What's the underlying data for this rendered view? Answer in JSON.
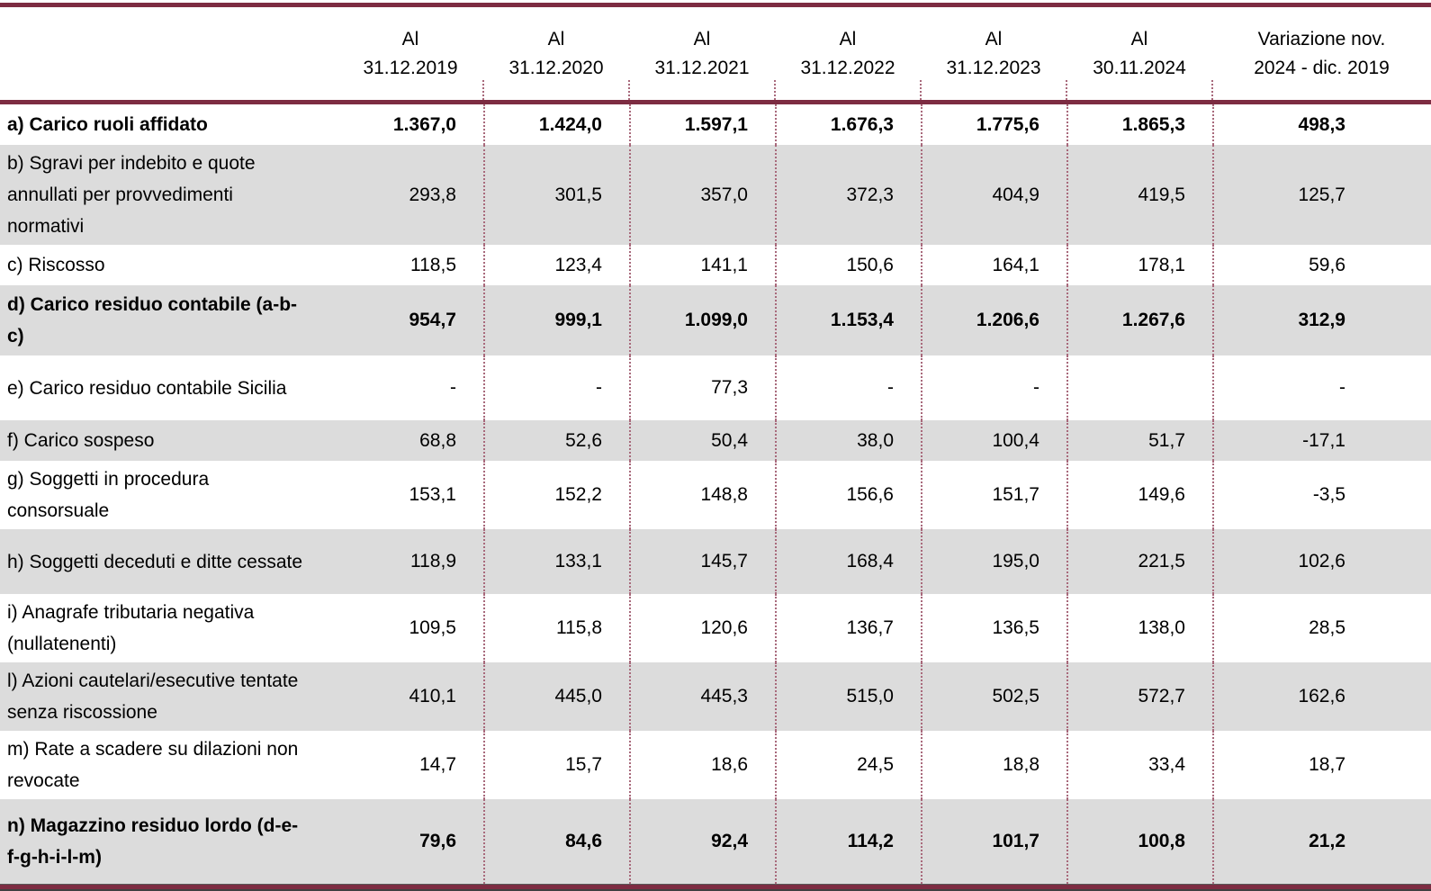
{
  "colors": {
    "rule_maroon": "#7d2c42",
    "separator_dotted": "#a8697b",
    "row_shade_gray": "#dcdcdc",
    "text": "#000000"
  },
  "table": {
    "columns": [
      {
        "line1": "Al",
        "line2": "31.12.2019"
      },
      {
        "line1": "Al",
        "line2": "31.12.2020"
      },
      {
        "line1": "Al",
        "line2": "31.12.2021"
      },
      {
        "line1": "Al",
        "line2": "31.12.2022"
      },
      {
        "line1": "Al",
        "line2": "31.12.2023"
      },
      {
        "line1": "Al",
        "line2": "30.11.2024"
      },
      {
        "line1": "Variazione nov.",
        "line2": "2024 - dic. 2019"
      }
    ],
    "rows": [
      {
        "label": "a) Carico ruoli affidato",
        "bold": true,
        "shaded": false,
        "values": [
          "1.367,0",
          "1.424,0",
          "1.597,1",
          "1.676,3",
          "1.775,6",
          "1.865,3",
          "498,3"
        ]
      },
      {
        "label": "b) Sgravi per indebito e quote annullati per provvedimenti normativi",
        "bold": false,
        "shaded": true,
        "values": [
          "293,8",
          "301,5",
          "357,0",
          "372,3",
          "404,9",
          "419,5",
          "125,7"
        ]
      },
      {
        "label": "c) Riscosso",
        "bold": false,
        "shaded": false,
        "values": [
          "118,5",
          "123,4",
          "141,1",
          "150,6",
          "164,1",
          "178,1",
          "59,6"
        ]
      },
      {
        "label": "d) Carico residuo contabile (a-b-c)",
        "bold": true,
        "shaded": true,
        "values": [
          "954,7",
          "999,1",
          "1.099,0",
          "1.153,4",
          "1.206,6",
          "1.267,6",
          "312,9"
        ]
      },
      {
        "label": "e) Carico residuo contabile Sicilia",
        "bold": false,
        "shaded": false,
        "values": [
          "-",
          "-",
          "77,3",
          "-",
          "-",
          "",
          "-"
        ]
      },
      {
        "label": "f) Carico sospeso",
        "bold": false,
        "shaded": true,
        "values": [
          "68,8",
          "52,6",
          "50,4",
          "38,0",
          "100,4",
          "51,7",
          "-17,1"
        ]
      },
      {
        "label": "g) Soggetti in procedura consorsuale",
        "bold": false,
        "shaded": false,
        "values": [
          "153,1",
          "152,2",
          "148,8",
          "156,6",
          "151,7",
          "149,6",
          "-3,5"
        ]
      },
      {
        "label": "h) Soggetti deceduti e ditte cessate",
        "bold": false,
        "shaded": true,
        "values": [
          "118,9",
          "133,1",
          "145,7",
          "168,4",
          "195,0",
          "221,5",
          "102,6"
        ]
      },
      {
        "label": "i) Anagrafe tributaria negativa (nullatenenti)",
        "bold": false,
        "shaded": false,
        "values": [
          "109,5",
          "115,8",
          "120,6",
          "136,7",
          "136,5",
          "138,0",
          "28,5"
        ]
      },
      {
        "label": "l) Azioni cautelari/esecutive tentate senza riscossione",
        "bold": false,
        "shaded": true,
        "values": [
          "410,1",
          "445,0",
          "445,3",
          "515,0",
          "502,5",
          "572,7",
          "162,6"
        ]
      },
      {
        "label": "m) Rate a scadere su dilazioni non revocate",
        "bold": false,
        "shaded": false,
        "values": [
          "14,7",
          "15,7",
          "18,6",
          "24,5",
          "18,8",
          "33,4",
          "18,7"
        ]
      },
      {
        "label": "n) Magazzino residuo lordo (d-e-f-g-h-i-l-m)",
        "bold": true,
        "shaded": true,
        "values": [
          "79,6",
          "84,6",
          "92,4",
          "114,2",
          "101,7",
          "100,8",
          "21,2"
        ]
      }
    ]
  }
}
